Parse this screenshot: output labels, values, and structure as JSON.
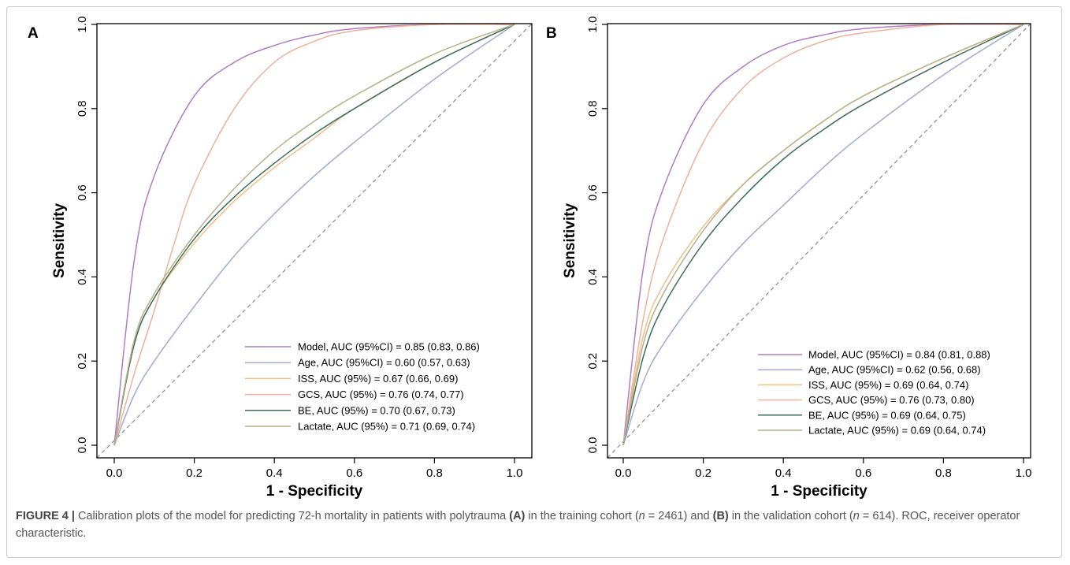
{
  "caption": {
    "label": "FIGURE 4 |",
    "t1": " Calibration plots of the model for predicting 72-h mortality in patients with polytrauma ",
    "b1": "(A)",
    "t2": " in the training cohort (",
    "n1": "n",
    "t3": " = 2461) and ",
    "b2": "(B)",
    "t4": " in the validation cohort (",
    "n2": "n",
    "t5": " = 614). ROC, receiver operator characteristic."
  },
  "chart_data": [
    {
      "type": "line",
      "panel": "A",
      "xlabel": "1 - Specificity",
      "ylabel": "Sensitivity",
      "xlim": [
        0,
        1
      ],
      "ylim": [
        0,
        1
      ],
      "xticks": [
        "0.0",
        "0.2",
        "0.4",
        "0.6",
        "0.8",
        "1.0"
      ],
      "yticks": [
        "0.0",
        "0.2",
        "0.4",
        "0.6",
        "0.8",
        "1.0"
      ],
      "legend_position": "bottom-right",
      "reference_line": "diagonal dashed",
      "series": [
        {
          "name": "Model, AUC (95%CI) = 0.85 (0.83, 0.86)",
          "color": "#b07cc6",
          "x": [
            0,
            0.05,
            0.1,
            0.2,
            0.3,
            0.4,
            0.5,
            0.6,
            0.8,
            1.0
          ],
          "y": [
            0,
            0.44,
            0.64,
            0.83,
            0.91,
            0.95,
            0.975,
            0.99,
            1.0,
            1.0
          ]
        },
        {
          "name": "Age, AUC (95%CI) = 0.60 (0.57, 0.63)",
          "color": "#a3a9d6",
          "x": [
            0,
            0.05,
            0.1,
            0.2,
            0.3,
            0.4,
            0.5,
            0.6,
            0.8,
            1.0
          ],
          "y": [
            0,
            0.12,
            0.2,
            0.33,
            0.45,
            0.55,
            0.64,
            0.72,
            0.87,
            1.0
          ]
        },
        {
          "name": "ISS, AUC (95%) = 0.67 (0.66, 0.69)",
          "color": "#efc089",
          "x": [
            0,
            0.05,
            0.1,
            0.2,
            0.3,
            0.4,
            0.5,
            0.6,
            0.8,
            1.0
          ],
          "y": [
            0,
            0.24,
            0.35,
            0.48,
            0.58,
            0.66,
            0.73,
            0.8,
            0.91,
            1.0
          ]
        },
        {
          "name": "GCS, AUC (95%) = 0.76 (0.74, 0.77)",
          "color": "#f0b09a",
          "x": [
            0,
            0.05,
            0.1,
            0.15,
            0.2,
            0.3,
            0.4,
            0.5,
            0.6,
            0.8,
            1.0
          ],
          "y": [
            0,
            0.17,
            0.32,
            0.48,
            0.62,
            0.8,
            0.91,
            0.96,
            0.985,
            1.0,
            1.0
          ]
        },
        {
          "name": "BE, AUC (95%) = 0.70 (0.67, 0.73)",
          "color": "#3d6e57",
          "x": [
            0,
            0.05,
            0.1,
            0.2,
            0.3,
            0.4,
            0.5,
            0.6,
            0.8,
            1.0
          ],
          "y": [
            0,
            0.24,
            0.35,
            0.49,
            0.59,
            0.67,
            0.74,
            0.8,
            0.91,
            1.0
          ]
        },
        {
          "name": "Lactate, AUC (95%) = 0.71 (0.69, 0.74)",
          "color": "#b5b08a",
          "x": [
            0,
            0.05,
            0.1,
            0.2,
            0.3,
            0.4,
            0.5,
            0.6,
            0.8,
            1.0
          ],
          "y": [
            0,
            0.25,
            0.36,
            0.5,
            0.61,
            0.7,
            0.77,
            0.83,
            0.93,
            1.0
          ]
        }
      ]
    },
    {
      "type": "line",
      "panel": "B",
      "xlabel": "1 - Specificity",
      "ylabel": "Sensitivity",
      "xlim": [
        0,
        1
      ],
      "ylim": [
        0,
        1
      ],
      "xticks": [
        "0.0",
        "0.2",
        "0.4",
        "0.6",
        "0.8",
        "1.0"
      ],
      "yticks": [
        "0.0",
        "0.2",
        "0.4",
        "0.6",
        "0.8",
        "1.0"
      ],
      "legend_position": "bottom-right",
      "reference_line": "diagonal dashed",
      "series": [
        {
          "name": "Model, AUC (95%CI) = 0.84 (0.81, 0.88)",
          "color": "#b07cc6",
          "x": [
            0,
            0.05,
            0.1,
            0.2,
            0.3,
            0.4,
            0.5,
            0.6,
            0.8,
            1.0
          ],
          "y": [
            0,
            0.42,
            0.61,
            0.81,
            0.9,
            0.95,
            0.975,
            0.99,
            1.0,
            1.0
          ]
        },
        {
          "name": "Age, AUC (95%CI) = 0.62 (0.56, 0.68)",
          "color": "#a3a9d6",
          "x": [
            0,
            0.05,
            0.1,
            0.2,
            0.3,
            0.4,
            0.5,
            0.6,
            0.8,
            1.0
          ],
          "y": [
            0,
            0.15,
            0.24,
            0.37,
            0.48,
            0.57,
            0.66,
            0.74,
            0.88,
            1.0
          ]
        },
        {
          "name": "ISS, AUC (95%) = 0.69 (0.64, 0.74)",
          "color": "#efc089",
          "x": [
            0,
            0.05,
            0.1,
            0.2,
            0.3,
            0.4,
            0.5,
            0.6,
            0.8,
            1.0
          ],
          "y": [
            0,
            0.26,
            0.38,
            0.52,
            0.62,
            0.7,
            0.77,
            0.83,
            0.92,
            1.0
          ]
        },
        {
          "name": "GCS, AUC (95%) = 0.76 (0.73, 0.80)",
          "color": "#f0b09a",
          "x": [
            0,
            0.05,
            0.1,
            0.2,
            0.3,
            0.4,
            0.5,
            0.6,
            0.8,
            1.0
          ],
          "y": [
            0,
            0.3,
            0.49,
            0.72,
            0.85,
            0.92,
            0.96,
            0.98,
            1.0,
            1.0
          ]
        },
        {
          "name": "BE, AUC (95%) = 0.69 (0.64, 0.75)",
          "color": "#3d6e57",
          "x": [
            0,
            0.05,
            0.1,
            0.2,
            0.3,
            0.4,
            0.5,
            0.6,
            0.8,
            1.0
          ],
          "y": [
            0,
            0.21,
            0.33,
            0.48,
            0.59,
            0.68,
            0.75,
            0.81,
            0.91,
            1.0
          ]
        },
        {
          "name": "Lactate, AUC (95%) = 0.69 (0.64, 0.74)",
          "color": "#b5b08a",
          "x": [
            0,
            0.05,
            0.1,
            0.2,
            0.3,
            0.4,
            0.5,
            0.6,
            0.8,
            1.0
          ],
          "y": [
            0,
            0.24,
            0.36,
            0.51,
            0.62,
            0.7,
            0.77,
            0.83,
            0.92,
            1.0
          ]
        }
      ]
    }
  ]
}
